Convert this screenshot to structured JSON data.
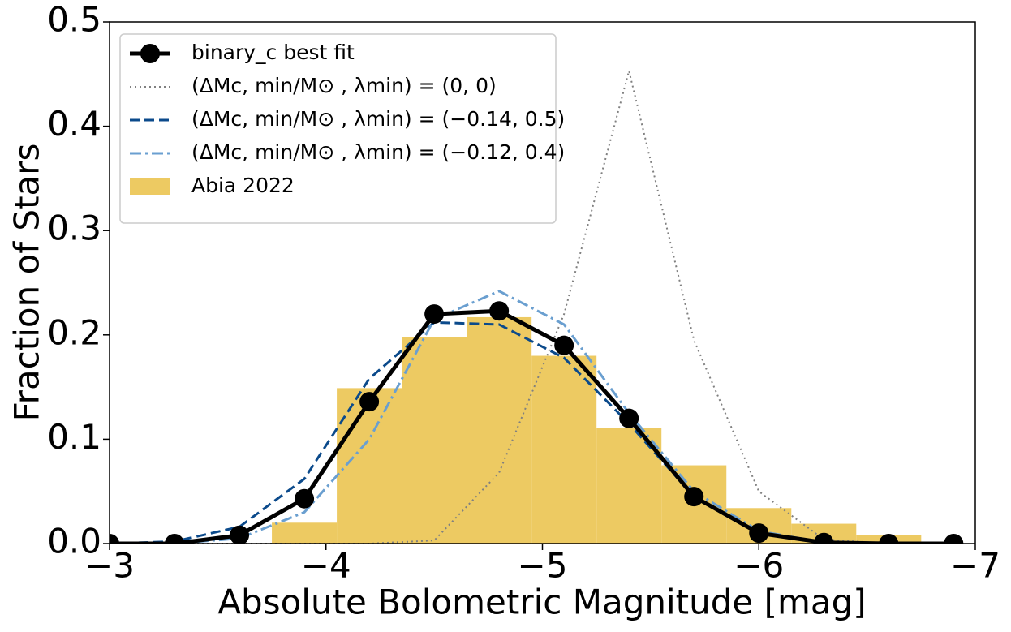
{
  "chart_data": {
    "type": "line",
    "xlabel": "Absolute Bolometric Magnitude [mag]",
    "ylabel": "Fraction of Stars",
    "xlim": [
      -3,
      -7
    ],
    "xticks": [
      {
        "value": -3,
        "label": "−3"
      },
      {
        "value": -4,
        "label": "−4"
      },
      {
        "value": -5,
        "label": "−5"
      },
      {
        "value": -6,
        "label": "−6"
      },
      {
        "value": -7,
        "label": "−7"
      }
    ],
    "ylim": [
      0,
      0.5
    ],
    "yticks": [
      {
        "value": 0,
        "label": "0.0"
      },
      0.1,
      0.2,
      0.3,
      0.4,
      0.5
    ],
    "legend": "upper left",
    "x": [
      -3,
      -3.3,
      -3.6,
      -3.9,
      -4.2,
      -4.5,
      -4.8,
      -5.1,
      -5.4,
      -5.7,
      -6.0,
      -6.3,
      -6.6,
      -6.9
    ],
    "series": [
      {
        "name": "binary_c best fit",
        "color": "#000000",
        "linestyle": "solid",
        "marker": "o",
        "values": [
          0,
          0,
          0.008,
          0.043,
          0.136,
          0.22,
          0.223,
          0.19,
          0.12,
          0.045,
          0.01,
          0.001,
          0,
          0
        ]
      },
      {
        "name": "(ΔMc, min/M⊙ , λmin) = (0, 0)",
        "color": "#808080",
        "linestyle": "dotted",
        "values": [
          0,
          0,
          0,
          0,
          0,
          0.003,
          0.068,
          0.22,
          0.453,
          0.195,
          0.05,
          0.004,
          0,
          0
        ]
      },
      {
        "name": "(ΔMc, min/M⊙ , λmin) = (−0.14, 0.5)",
        "color": "#0b4a8b",
        "linestyle": "dashed",
        "values": [
          0,
          0.002,
          0.016,
          0.062,
          0.158,
          0.212,
          0.21,
          0.178,
          0.115,
          0.045,
          0.01,
          0.001,
          0,
          0
        ]
      },
      {
        "name": "(ΔMc, min/M⊙ , λmin) = (−0.12, 0.4)",
        "color": "#6a9fd0",
        "linestyle": "dashdot",
        "values": [
          0,
          0,
          0.005,
          0.03,
          0.1,
          0.215,
          0.242,
          0.21,
          0.125,
          0.05,
          0.012,
          0.001,
          0,
          0
        ]
      }
    ],
    "histogram": {
      "name": "Abia 2022",
      "color": "#edca62",
      "bins": [
        -3.75,
        -4.05,
        -4.35,
        -4.65,
        -4.95,
        -5.25,
        -5.55,
        -5.85,
        -6.15,
        -6.45,
        -6.75
      ],
      "values": [
        0.02,
        0.149,
        0.198,
        0.217,
        0.18,
        0.111,
        0.075,
        0.034,
        0.019,
        0.008
      ]
    }
  }
}
